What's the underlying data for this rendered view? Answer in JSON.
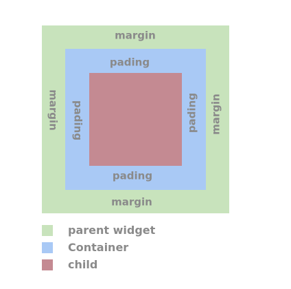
{
  "colors": {
    "parent": "#c8e3bc",
    "container": "#a9c9f5",
    "child": "#c48a92",
    "text": "#8a8a8a"
  },
  "diagram": {
    "margin_label": "margin",
    "padding_label": "pading"
  },
  "legend": [
    {
      "label": "parent widget",
      "color": "#c8e3bc"
    },
    {
      "label": "Container",
      "color": "#a9c9f5"
    },
    {
      "label": "child",
      "color": "#c48a92"
    }
  ]
}
